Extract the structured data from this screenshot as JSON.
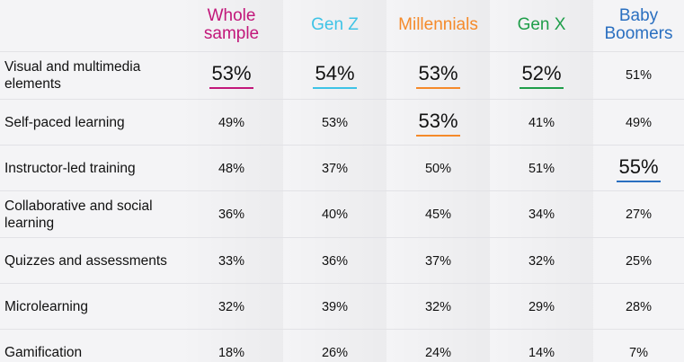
{
  "headers": [
    {
      "label_line1": "Whole",
      "label_line2": "sample",
      "color": "#c2177a"
    },
    {
      "label_line1": "Gen Z",
      "label_line2": "",
      "color": "#3ec3e6"
    },
    {
      "label_line1": "Millennials",
      "label_line2": "",
      "color": "#f58a2a"
    },
    {
      "label_line1": "Gen X",
      "label_line2": "",
      "color": "#1f9e4a"
    },
    {
      "label_line1": "Baby",
      "label_line2": "Boomers",
      "color": "#2a6fc0"
    }
  ],
  "rows": [
    {
      "label": "Visual and multimedia elements",
      "values": [
        "53%",
        "54%",
        "53%",
        "52%",
        "51%"
      ]
    },
    {
      "label": "Self-paced learning",
      "values": [
        "49%",
        "53%",
        "53%",
        "41%",
        "49%"
      ]
    },
    {
      "label": "Instructor-led training",
      "values": [
        "48%",
        "37%",
        "50%",
        "51%",
        "55%"
      ]
    },
    {
      "label": "Collaborative and social learning",
      "values": [
        "36%",
        "40%",
        "45%",
        "34%",
        "27%"
      ]
    },
    {
      "label": "Quizzes and assessments",
      "values": [
        "33%",
        "36%",
        "37%",
        "32%",
        "25%"
      ]
    },
    {
      "label": "Microlearning",
      "values": [
        "32%",
        "39%",
        "32%",
        "29%",
        "28%"
      ]
    },
    {
      "label": "Gamification",
      "values": [
        "18%",
        "26%",
        "24%",
        "14%",
        "7%"
      ]
    }
  ],
  "highlights": [
    {
      "row": 0,
      "col": 0
    },
    {
      "row": 0,
      "col": 1
    },
    {
      "row": 0,
      "col": 2
    },
    {
      "row": 0,
      "col": 3
    },
    {
      "row": 1,
      "col": 2
    },
    {
      "row": 2,
      "col": 4
    }
  ]
}
